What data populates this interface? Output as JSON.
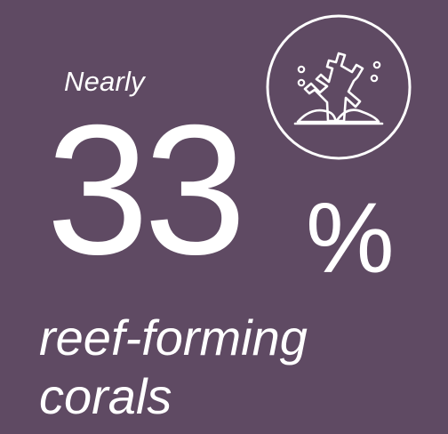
{
  "background_color": "#5f4a63",
  "text_color": "#ffffff",
  "qualifier": "Nearly",
  "value": "33",
  "unit": "%",
  "caption": {
    "line1": "reef-forming",
    "line2": "corals"
  },
  "icon": "coral-icon"
}
